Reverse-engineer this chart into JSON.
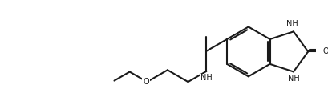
{
  "bg_color": "#ffffff",
  "line_color": "#1a1a1a",
  "line_width": 1.5,
  "font_size": 7.0,
  "figsize": [
    4.09,
    1.26
  ],
  "dpi": 100,
  "xlim": [
    -0.5,
    13.5
  ],
  "ylim": [
    0.0,
    4.3
  ]
}
